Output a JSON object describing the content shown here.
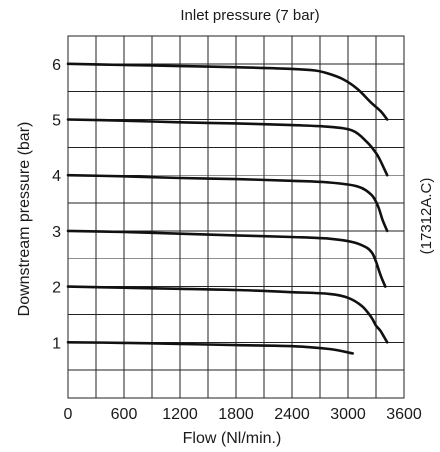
{
  "chart_data": {
    "type": "line",
    "title": "Inlet pressure (7 bar)",
    "xlabel": "Flow (Nl/min.)",
    "ylabel": "Downstream pressure (bar)",
    "side_note": "(17312A.C)",
    "xlim": [
      0,
      3600
    ],
    "ylim": [
      0,
      6.5
    ],
    "x_ticks": [
      "0",
      "600",
      "1200",
      "1800",
      "2400",
      "3000",
      "3600"
    ],
    "y_ticks": [
      "1",
      "2",
      "3",
      "4",
      "5",
      "6"
    ],
    "grid": true,
    "series": [
      {
        "x": [
          0,
          600,
          1200,
          1800,
          2400,
          2800,
          3050
        ],
        "y": [
          1.0,
          0.99,
          0.97,
          0.95,
          0.93,
          0.88,
          0.8
        ]
      },
      {
        "x": [
          0,
          600,
          1200,
          1800,
          2400,
          2800,
          3000,
          3150,
          3250,
          3300,
          3350,
          3420
        ],
        "y": [
          2.0,
          1.98,
          1.96,
          1.94,
          1.9,
          1.87,
          1.8,
          1.65,
          1.45,
          1.3,
          1.2,
          1.0
        ]
      },
      {
        "x": [
          0,
          600,
          1200,
          1800,
          2400,
          2800,
          3050,
          3200,
          3260,
          3300,
          3350,
          3400
        ],
        "y": [
          3.0,
          2.98,
          2.95,
          2.92,
          2.89,
          2.86,
          2.8,
          2.7,
          2.6,
          2.45,
          2.2,
          2.0
        ]
      },
      {
        "x": [
          0,
          600,
          1200,
          1800,
          2400,
          2800,
          3100,
          3250,
          3320,
          3370,
          3420
        ],
        "y": [
          4.0,
          3.98,
          3.95,
          3.93,
          3.9,
          3.87,
          3.8,
          3.65,
          3.45,
          3.2,
          3.0
        ]
      },
      {
        "x": [
          0,
          600,
          1200,
          1800,
          2400,
          2800,
          3050,
          3200,
          3300,
          3350,
          3420
        ],
        "y": [
          5.0,
          4.98,
          4.95,
          4.93,
          4.9,
          4.87,
          4.8,
          4.6,
          4.4,
          4.25,
          4.0
        ]
      },
      {
        "x": [
          0,
          600,
          1200,
          1800,
          2400,
          2650,
          2800,
          2950,
          3100,
          3250,
          3350,
          3420
        ],
        "y": [
          6.0,
          5.98,
          5.96,
          5.94,
          5.91,
          5.88,
          5.82,
          5.72,
          5.55,
          5.3,
          5.15,
          5.0
        ]
      }
    ]
  }
}
